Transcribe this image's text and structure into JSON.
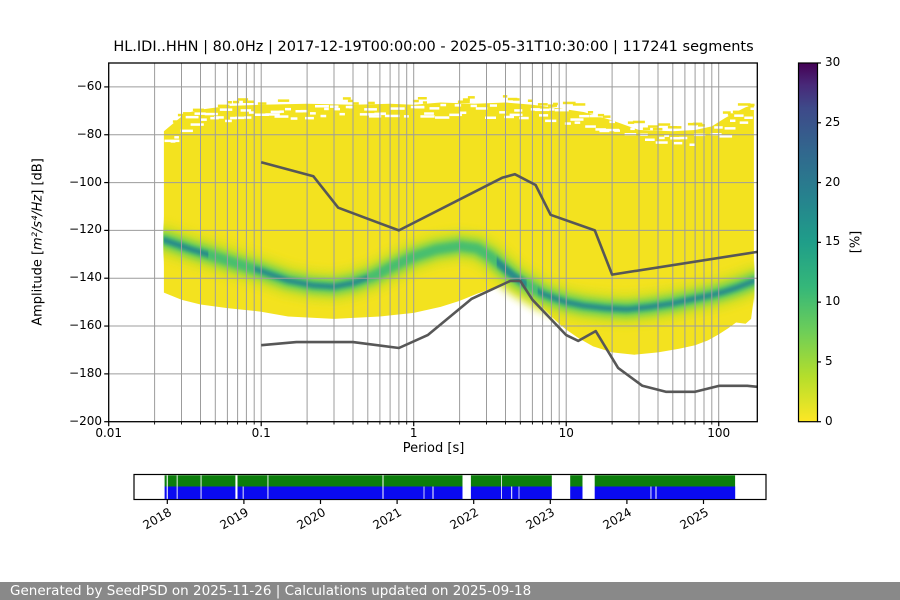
{
  "header": {
    "title": "HL.IDI..HHN | 80.0Hz | 2017-12-19T00:00:00 - 2025-05-31T10:30:00 | 117241 segments"
  },
  "chart_data": {
    "type": "heatmap",
    "title": "HL.IDI..HHN | 80.0Hz | 2017-12-19T00:00:00 - 2025-05-31T10:30:00 | 117241 segments",
    "xlabel": "Period [s]",
    "ylabel": {
      "pre": "Amplitude [",
      "math": "m²/s⁴/Hz",
      "post": "] [dB]"
    },
    "xscale": "log",
    "xlim": [
      0.01,
      179
    ],
    "ylim": [
      -200,
      -50
    ],
    "grid": true,
    "xticks": [
      {
        "label": "0.01",
        "value": 0.01
      },
      {
        "label": "0.1",
        "value": 0.1
      },
      {
        "label": "1",
        "value": 1
      },
      {
        "label": "10",
        "value": 10
      },
      {
        "label": "100",
        "value": 100
      }
    ],
    "yticks": [
      {
        "label": "−60",
        "value": -60
      },
      {
        "label": "−80",
        "value": -80
      },
      {
        "label": "−100",
        "value": -100
      },
      {
        "label": "−120",
        "value": -120
      },
      {
        "label": "−140",
        "value": -140
      },
      {
        "label": "−160",
        "value": -160
      },
      {
        "label": "−180",
        "value": -180
      },
      {
        "label": "−200",
        "value": -200
      }
    ],
    "colorbar": {
      "label": "[%]",
      "lim": [
        0,
        30
      ],
      "colormap": "viridis_r",
      "ticks": [
        {
          "label": "0",
          "value": 0
        },
        {
          "label": "5",
          "value": 5
        },
        {
          "label": "10",
          "value": 10
        },
        {
          "label": "15",
          "value": 15
        },
        {
          "label": "20",
          "value": 20
        },
        {
          "label": "25",
          "value": 25
        },
        {
          "label": "30",
          "value": 30
        }
      ],
      "gradient_stops": [
        {
          "t": 0.0,
          "c": "#fde725"
        },
        {
          "t": 0.125,
          "c": "#b5de2b"
        },
        {
          "t": 0.25,
          "c": "#6ece58"
        },
        {
          "t": 0.375,
          "c": "#35b779"
        },
        {
          "t": 0.5,
          "c": "#1f9e89"
        },
        {
          "t": 0.625,
          "c": "#26828e"
        },
        {
          "t": 0.75,
          "c": "#31688e"
        },
        {
          "t": 0.875,
          "c": "#3e4989"
        },
        {
          "t": 0.94,
          "c": "#482878"
        },
        {
          "t": 1.0,
          "c": "#440154"
        }
      ]
    },
    "noise_models": {
      "color": "#575757",
      "nhnm": [
        [
          0.1,
          -91.5
        ],
        [
          0.22,
          -97.4
        ],
        [
          0.32,
          -110.5
        ],
        [
          0.8,
          -120
        ],
        [
          3.8,
          -98
        ],
        [
          4.6,
          -96.5
        ],
        [
          6.3,
          -101
        ],
        [
          7.9,
          -113.5
        ],
        [
          15.4,
          -120
        ],
        [
          20,
          -138.5
        ],
        [
          179,
          -129
        ]
      ],
      "nlnm": [
        [
          0.1,
          -168
        ],
        [
          0.17,
          -166.7
        ],
        [
          0.4,
          -166.7
        ],
        [
          0.8,
          -169.2
        ],
        [
          1.24,
          -163.7
        ],
        [
          2.4,
          -148.6
        ],
        [
          4.3,
          -141.1
        ],
        [
          5,
          -141.1
        ],
        [
          6,
          -149
        ],
        [
          10,
          -163.8
        ],
        [
          12,
          -166.2
        ],
        [
          15.6,
          -162.1
        ],
        [
          21.9,
          -177.5
        ],
        [
          31.6,
          -185
        ],
        [
          45,
          -187.5
        ],
        [
          70,
          -187.5
        ],
        [
          101,
          -185
        ],
        [
          154,
          -185
        ],
        [
          179,
          -185.4
        ]
      ]
    },
    "distribution": {
      "colors": {
        "yellow": "#f3e21f",
        "halo": "#d7e021",
        "green": "#8fd744",
        "inner": "#3fbc73",
        "teal": "#25858e"
      },
      "period_range": [
        0.023,
        170
      ],
      "top_edge": [
        [
          0.023,
          -78.5
        ],
        [
          0.028,
          -74
        ],
        [
          0.032,
          -71
        ],
        [
          0.04,
          -69.5
        ],
        [
          0.06,
          -68
        ],
        [
          0.1,
          -67.5
        ],
        [
          0.2,
          -67
        ],
        [
          0.4,
          -67.5
        ],
        [
          0.7,
          -67
        ],
        [
          1,
          -67.5
        ],
        [
          1.5,
          -66.5
        ],
        [
          2.5,
          -67
        ],
        [
          4,
          -66.5
        ],
        [
          6,
          -67.5
        ],
        [
          9,
          -69
        ],
        [
          13,
          -70.5
        ],
        [
          20,
          -74
        ],
        [
          30,
          -78
        ],
        [
          50,
          -78.5
        ],
        [
          70,
          -78
        ],
        [
          90,
          -76.5
        ],
        [
          110,
          -73
        ],
        [
          130,
          -70.5
        ],
        [
          150,
          -68.5
        ],
        [
          170,
          -67.5
        ]
      ],
      "right_edge": [
        [
          170,
          -148
        ]
      ],
      "bottom_edge": [
        [
          0.023,
          -146
        ],
        [
          0.03,
          -149
        ],
        [
          0.04,
          -151
        ],
        [
          0.06,
          -152.5
        ],
        [
          0.1,
          -154
        ],
        [
          0.15,
          -156
        ],
        [
          0.3,
          -157
        ],
        [
          0.6,
          -156
        ],
        [
          1,
          -154.5
        ],
        [
          1.5,
          -152
        ],
        [
          2,
          -149.5
        ],
        [
          2.6,
          -146.5
        ],
        [
          3.2,
          -144.5
        ],
        [
          4,
          -142.5
        ],
        [
          4.6,
          -141.5
        ],
        [
          5.2,
          -143
        ],
        [
          6,
          -147
        ],
        [
          7,
          -152
        ],
        [
          8,
          -156
        ],
        [
          9,
          -159
        ],
        [
          10,
          -161.5
        ],
        [
          12,
          -165
        ],
        [
          15,
          -168.5
        ],
        [
          20,
          -171
        ],
        [
          28,
          -172
        ],
        [
          40,
          -171
        ],
        [
          55,
          -169.5
        ],
        [
          70,
          -168
        ],
        [
          85,
          -166
        ],
        [
          100,
          -163.5
        ],
        [
          115,
          -161
        ],
        [
          130,
          -158.5
        ],
        [
          150,
          -159
        ],
        [
          163,
          -157
        ]
      ],
      "mode_line": [
        [
          0.023,
          -124
        ],
        [
          0.035,
          -128
        ],
        [
          0.05,
          -131
        ],
        [
          0.07,
          -134
        ],
        [
          0.1,
          -137
        ],
        [
          0.15,
          -141
        ],
        [
          0.22,
          -143
        ],
        [
          0.3,
          -143.5
        ],
        [
          0.4,
          -142
        ],
        [
          0.55,
          -139
        ],
        [
          0.7,
          -135.5
        ],
        [
          1,
          -131
        ],
        [
          1.4,
          -128
        ],
        [
          2,
          -126.5
        ],
        [
          2.6,
          -127.5
        ],
        [
          3.2,
          -131
        ],
        [
          3.8,
          -135
        ],
        [
          4.4,
          -138.5
        ],
        [
          5,
          -141
        ],
        [
          6,
          -144
        ],
        [
          7,
          -146.5
        ],
        [
          8.5,
          -148.5
        ],
        [
          10,
          -150
        ],
        [
          13,
          -151.5
        ],
        [
          18,
          -152.5
        ],
        [
          25,
          -153
        ],
        [
          35,
          -152
        ],
        [
          50,
          -150.5
        ],
        [
          70,
          -148.5
        ],
        [
          90,
          -147
        ],
        [
          110,
          -145.5
        ],
        [
          130,
          -144
        ],
        [
          150,
          -142.5
        ],
        [
          165,
          -141.5
        ],
        [
          172,
          -141
        ]
      ],
      "teal_period_ranges": [
        [
          0.023,
          0.045,
          5
        ],
        [
          0.09,
          0.5,
          4.5
        ],
        [
          3.5,
          5.5,
          6.5
        ],
        [
          6.5,
          172,
          4.5
        ]
      ]
    }
  },
  "timeline": {
    "years": [
      {
        "label": "2018",
        "value": 2018
      },
      {
        "label": "2019",
        "value": 2019
      },
      {
        "label": "2020",
        "value": 2020
      },
      {
        "label": "2021",
        "value": 2021
      },
      {
        "label": "2022",
        "value": 2022
      },
      {
        "label": "2023",
        "value": 2023
      },
      {
        "label": "2024",
        "value": 2024
      },
      {
        "label": "2025",
        "value": 2025
      }
    ],
    "coverage": {
      "start_year": 2017.965,
      "end_year": 2025.413
    },
    "colors": {
      "green": "#0b7d0b",
      "blue": "#0a0af0"
    },
    "green_gaps": [
      [
        2017.992,
        2018.006
      ],
      [
        2018.122,
        2018.134
      ],
      [
        2018.434,
        2018.446
      ],
      [
        2018.888,
        2018.916
      ],
      [
        2019.308,
        2019.32
      ],
      [
        2020.81,
        2020.822
      ],
      [
        2021.853,
        2021.963
      ],
      [
        2022.358,
        2022.37
      ],
      [
        2023.02,
        2023.26
      ],
      [
        2023.42,
        2023.58
      ]
    ],
    "blue_extra_gaps": [
      [
        2018.984,
        2018.996
      ],
      [
        2021.345,
        2021.357
      ],
      [
        2021.463,
        2021.475
      ],
      [
        2022.49,
        2022.502
      ],
      [
        2022.585,
        2022.597
      ],
      [
        2024.308,
        2024.32
      ],
      [
        2024.374,
        2024.386
      ]
    ]
  },
  "footer": {
    "text": "Generated by SeedPSD on 2025-11-26 | Calculations updated on 2025-09-18",
    "bg_color": "#898989"
  }
}
